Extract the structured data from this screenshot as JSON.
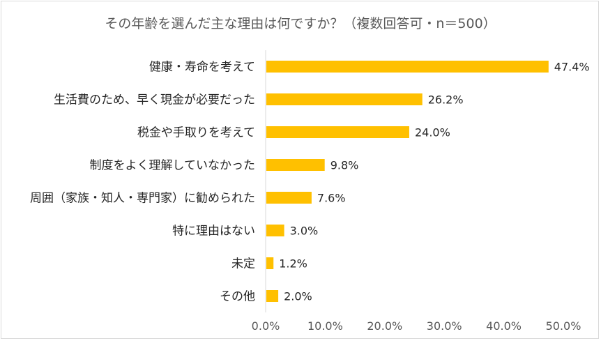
{
  "chart_data": {
    "type": "bar",
    "orientation": "horizontal",
    "title": "その年齢を選んだ主な理由は何ですか？（複数回答可・n＝500）",
    "categories": [
      "健康・寿命を考えて",
      "生活費のため、早く現金が必要だった",
      "税金や手取りを考えて",
      "制度をよく理解していなかった",
      "周囲（家族・知人・専門家）に勧められた",
      "特に理由はない",
      "未定",
      "その他"
    ],
    "values": [
      47.4,
      26.2,
      24.0,
      9.8,
      7.6,
      3.0,
      1.2,
      2.0
    ],
    "data_labels": [
      "47.4%",
      "26.2%",
      "24.0%",
      "9.8%",
      "7.6%",
      "3.0%",
      "1.2%",
      "2.0%"
    ],
    "xlim": [
      0,
      50
    ],
    "xticks": [
      "0.0%",
      "10.0%",
      "20.0%",
      "30.0%",
      "40.0%",
      "50.0%"
    ],
    "grid": false,
    "bar_color": "#FFC000"
  }
}
